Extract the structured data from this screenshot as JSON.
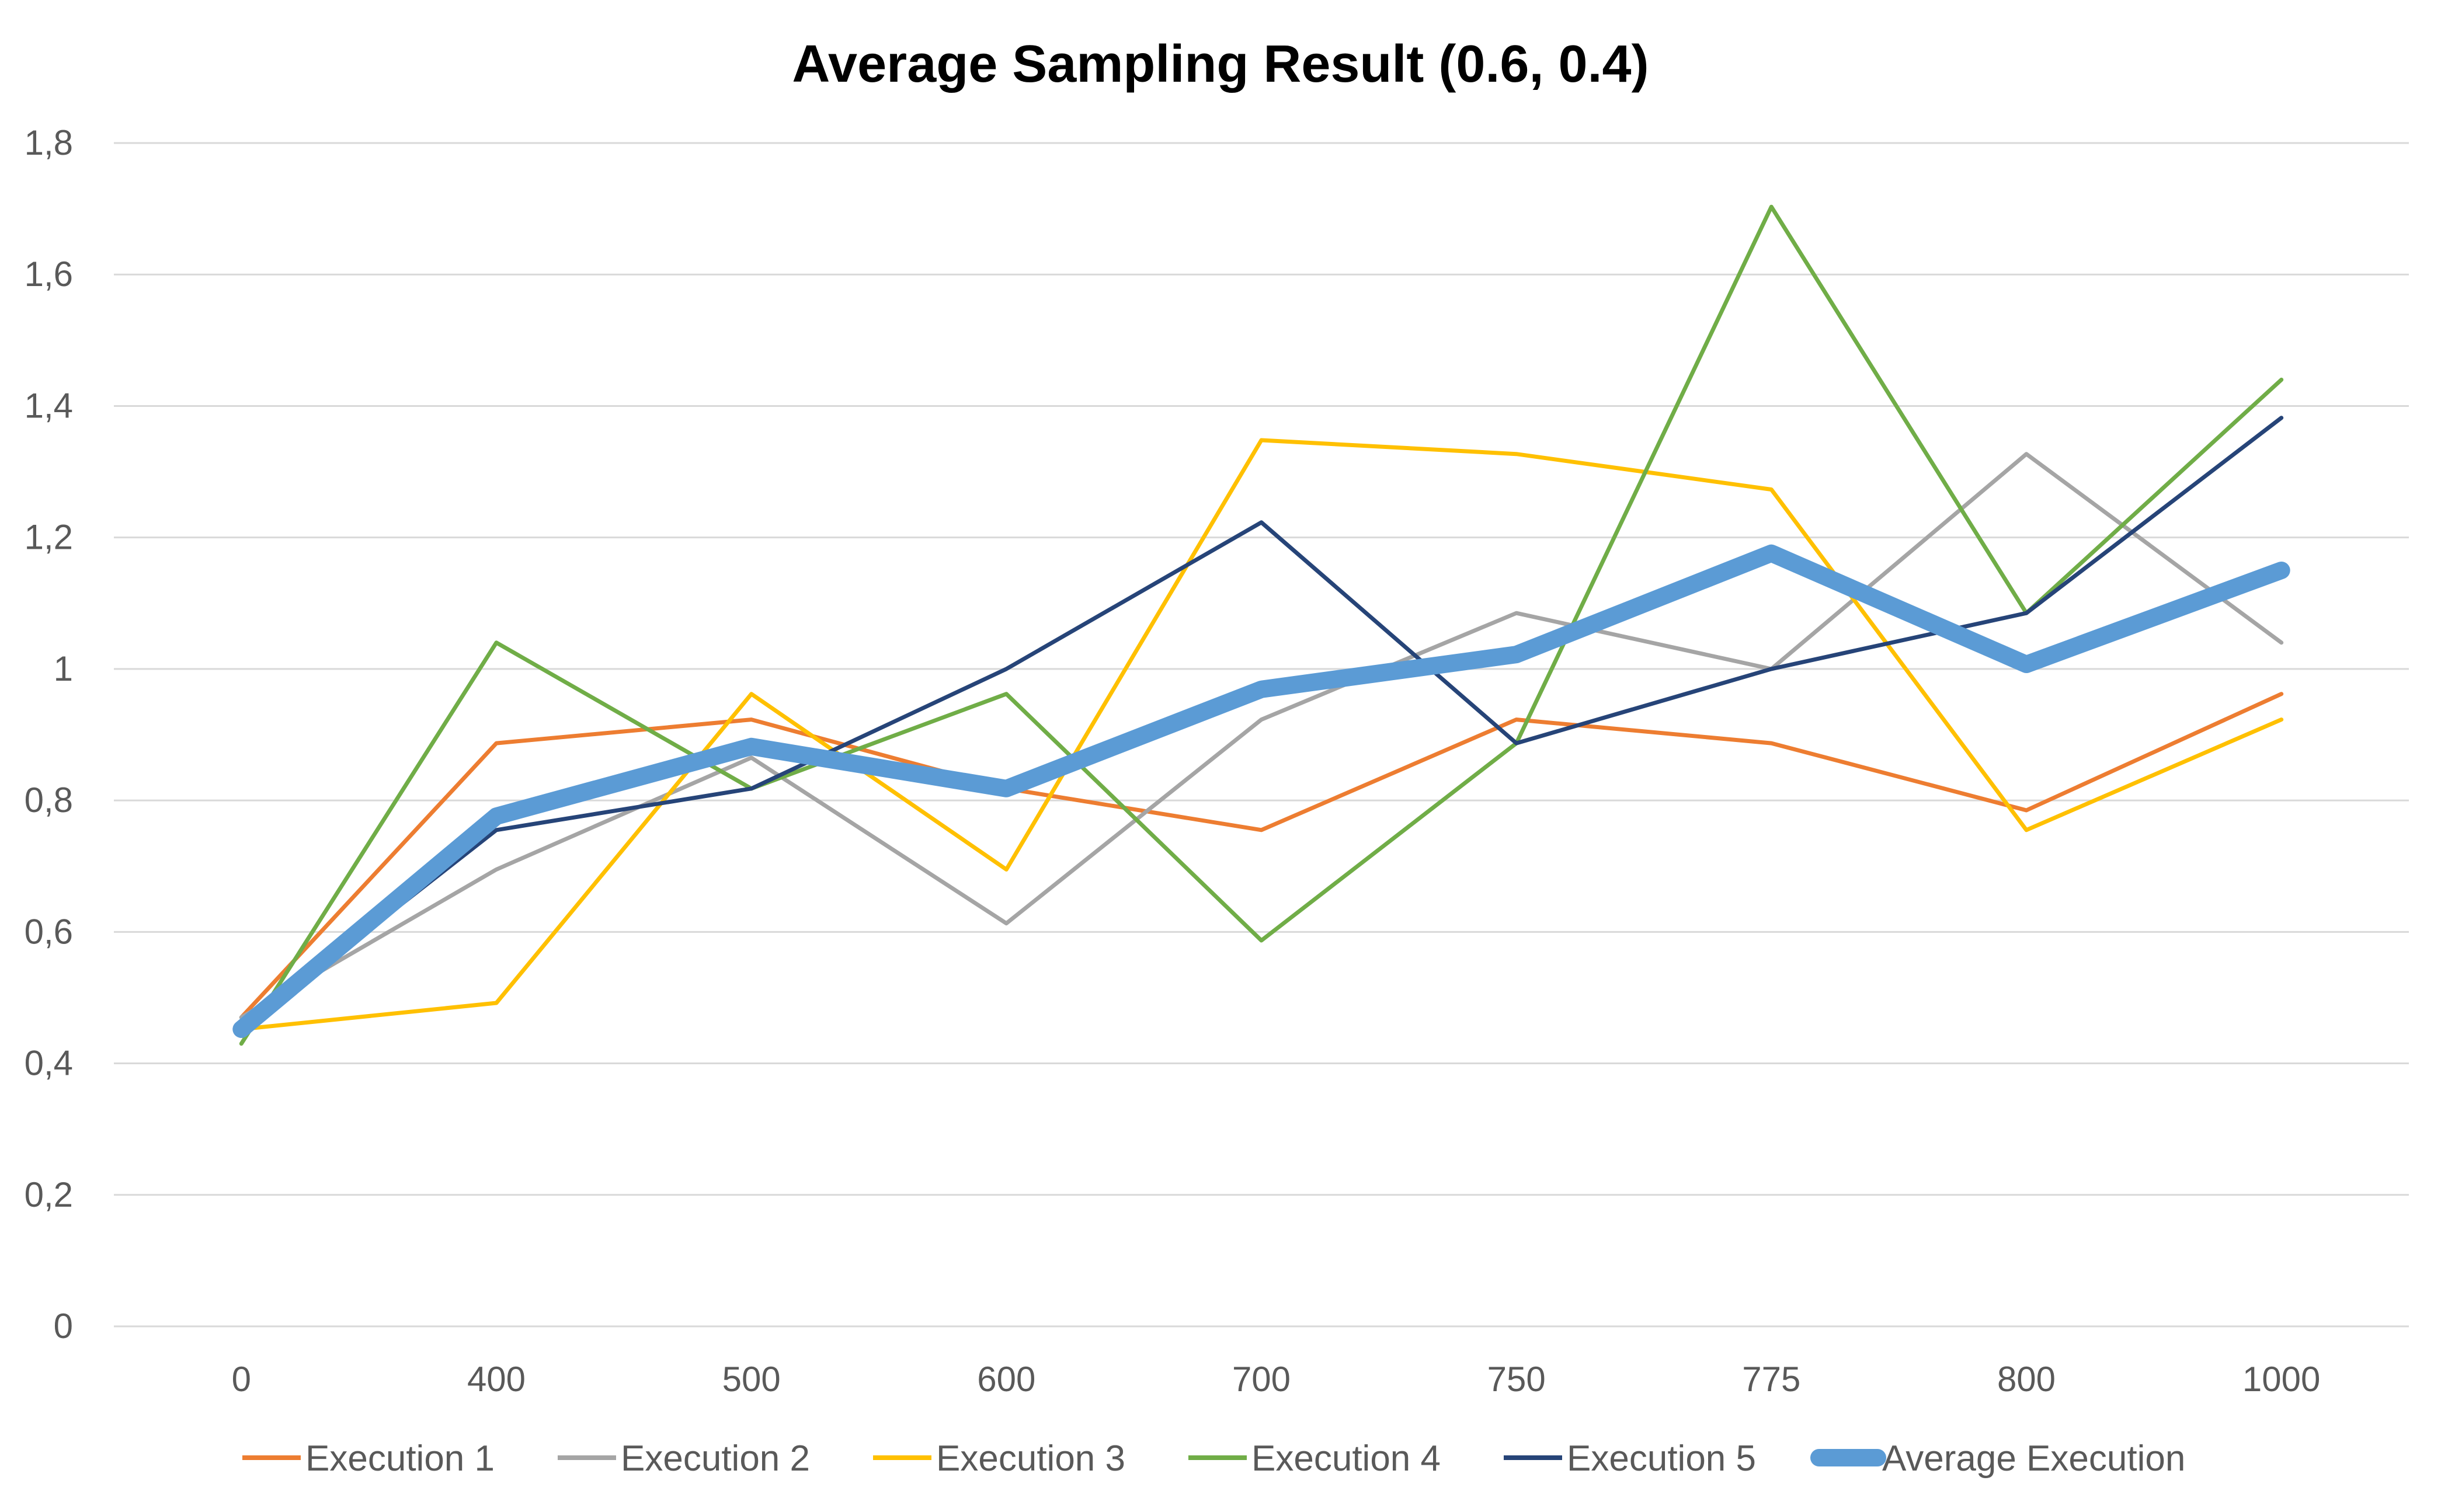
{
  "chart_data": {
    "type": "line",
    "title": "Average Sampling Result (0.6, 0.4)",
    "xlabel": "",
    "ylabel": "",
    "categories": [
      "0",
      "400",
      "500",
      "600",
      "700",
      "750",
      "775",
      "800",
      "1000"
    ],
    "y_ticks": [
      "0",
      "0,2",
      "0,4",
      "0,6",
      "0,8",
      "1",
      "1,2",
      "1,4",
      "1,6",
      "1,8"
    ],
    "ylim": [
      0,
      1.8
    ],
    "grid": true,
    "legend_position": "bottom",
    "series": [
      {
        "name": "Execution 1",
        "color": "#ed7d31",
        "width": "thin",
        "values": [
          0.47,
          0.887,
          0.923,
          0.818,
          0.755,
          0.923,
          0.887,
          0.785,
          0.962
        ]
      },
      {
        "name": "Execution 2",
        "color": "#a5a5a5",
        "width": "thin",
        "values": [
          0.47,
          0.695,
          0.865,
          0.613,
          0.923,
          1.085,
          1.0,
          1.327,
          1.04
        ]
      },
      {
        "name": "Execution 3",
        "color": "#ffc000",
        "width": "thin",
        "values": [
          0.452,
          0.492,
          0.962,
          0.695,
          1.348,
          1.327,
          1.273,
          0.755,
          0.923
        ]
      },
      {
        "name": "Execution 4",
        "color": "#70ad47",
        "width": "thin",
        "values": [
          0.43,
          1.04,
          0.818,
          0.962,
          0.587,
          0.887,
          1.703,
          1.085,
          1.44
        ]
      },
      {
        "name": "Execution 5",
        "color": "#264478",
        "width": "thin",
        "values": [
          0.452,
          0.755,
          0.818,
          1.0,
          1.223,
          0.887,
          1.0,
          1.085,
          1.382
        ]
      },
      {
        "name": "Average Execution",
        "color": "#5b9bd5",
        "width": "thick",
        "values": [
          0.452,
          0.776,
          0.882,
          0.818,
          0.969,
          1.022,
          1.176,
          1.007,
          1.15
        ]
      }
    ]
  }
}
